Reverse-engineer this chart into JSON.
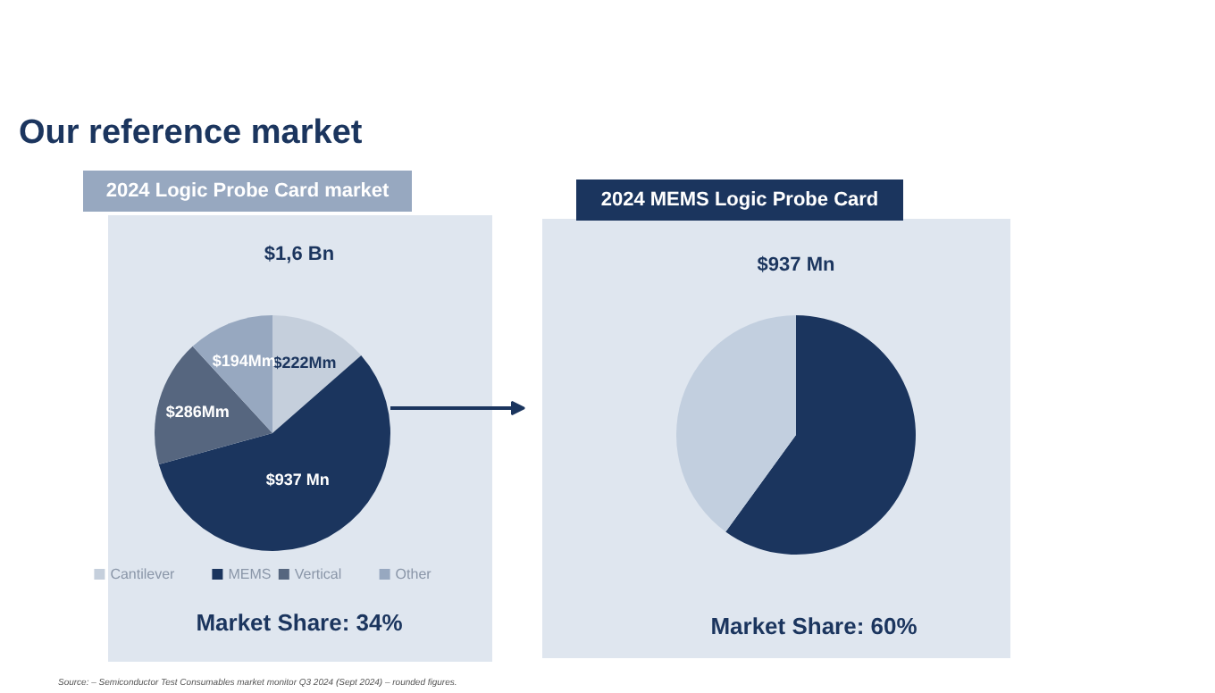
{
  "chart_data": [
    {
      "type": "pie",
      "title": "2024 Logic Probe Card market",
      "subtitle": "$1,6 Bn",
      "categories": [
        "Cantilever",
        "MEMS",
        "Vertical",
        "Other"
      ],
      "values": [
        222,
        937,
        286,
        194
      ],
      "colors": [
        "#c5cfdc",
        "#1b355e",
        "#56667f",
        "#97a8c0"
      ],
      "value_labels": [
        "$222Mm",
        "$937 Mn",
        "$286Mm",
        "$194Mm"
      ],
      "legend": "bottom",
      "annotations": [
        "Our reference market",
        "Market Share: 34%",
        "Source: – Semiconductor Test Consumables market monitor Q3 2024 (Sept 2024) – rounded figures."
      ]
    },
    {
      "type": "pie",
      "title": "2024 MEMS Logic Probe Card",
      "subtitle": "$937 Mn",
      "categories": [
        null,
        null
      ],
      "values": [
        60,
        40
      ],
      "colors": [
        "#1b355e",
        "#c2cfdf"
      ],
      "annotations": [
        "Market Share: 60%"
      ]
    }
  ]
}
